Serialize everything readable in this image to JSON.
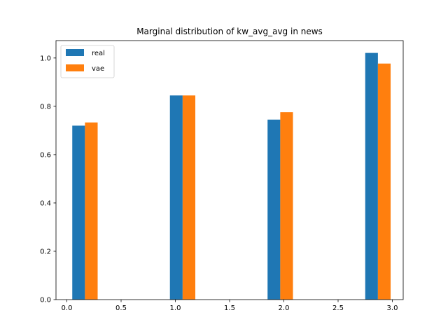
{
  "chart_data": {
    "type": "bar",
    "title": "Marginal distribution of kw_avg_avg in news",
    "xlabel": "",
    "ylabel": "",
    "xlim": [
      -0.1,
      3.1
    ],
    "ylim": [
      0,
      1.072
    ],
    "xticks": [
      0.0,
      0.5,
      1.0,
      1.5,
      2.0,
      2.5,
      3.0
    ],
    "xtick_labels": [
      "0.0",
      "0.5",
      "1.0",
      "1.5",
      "2.0",
      "2.5",
      "3.0"
    ],
    "yticks": [
      0.0,
      0.2,
      0.4,
      0.6,
      0.8,
      1.0
    ],
    "ytick_labels": [
      "0.0",
      "0.2",
      "0.4",
      "0.6",
      "0.8",
      "1.0"
    ],
    "grid": false,
    "legend_position": "top-left",
    "bar_width": 0.117,
    "series": [
      {
        "name": "real",
        "color": "#1f77b4",
        "x": [
          0.05,
          0.95,
          1.85,
          2.75
        ],
        "values": [
          0.72,
          0.845,
          0.745,
          1.021
        ]
      },
      {
        "name": "vae",
        "color": "#ff7f0e",
        "x": [
          0.167,
          1.067,
          1.967,
          2.867
        ],
        "values": [
          0.733,
          0.845,
          0.776,
          0.977
        ]
      }
    ]
  }
}
